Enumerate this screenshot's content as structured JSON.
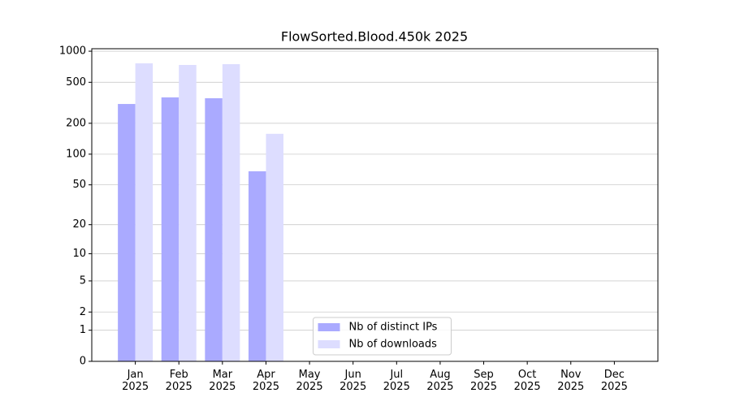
{
  "chart_data": {
    "type": "bar",
    "title": "FlowSorted.Blood.450k 2025",
    "categories": [
      "Jan\n2025",
      "Feb\n2025",
      "Mar\n2025",
      "Apr\n2025",
      "May\n2025",
      "Jun\n2025",
      "Jul\n2025",
      "Aug\n2025",
      "Sep\n2025",
      "Oct\n2025",
      "Nov\n2025",
      "Dec\n2025"
    ],
    "series": [
      {
        "name": "Nb of distinct IPs",
        "color": "#aaaaff",
        "values": [
          308,
          357,
          350,
          68,
          null,
          null,
          null,
          null,
          null,
          null,
          null,
          null
        ]
      },
      {
        "name": "Nb of downloads",
        "color": "#ddddff",
        "values": [
          763,
          736,
          749,
          158,
          null,
          null,
          null,
          null,
          null,
          null,
          null,
          null
        ]
      }
    ],
    "yscale": "log1p",
    "ylim": [
      0,
      1057
    ],
    "yticks": [
      0,
      1,
      2,
      5,
      10,
      20,
      50,
      100,
      200,
      500,
      1000
    ],
    "grid": true,
    "legend": "lower center"
  }
}
